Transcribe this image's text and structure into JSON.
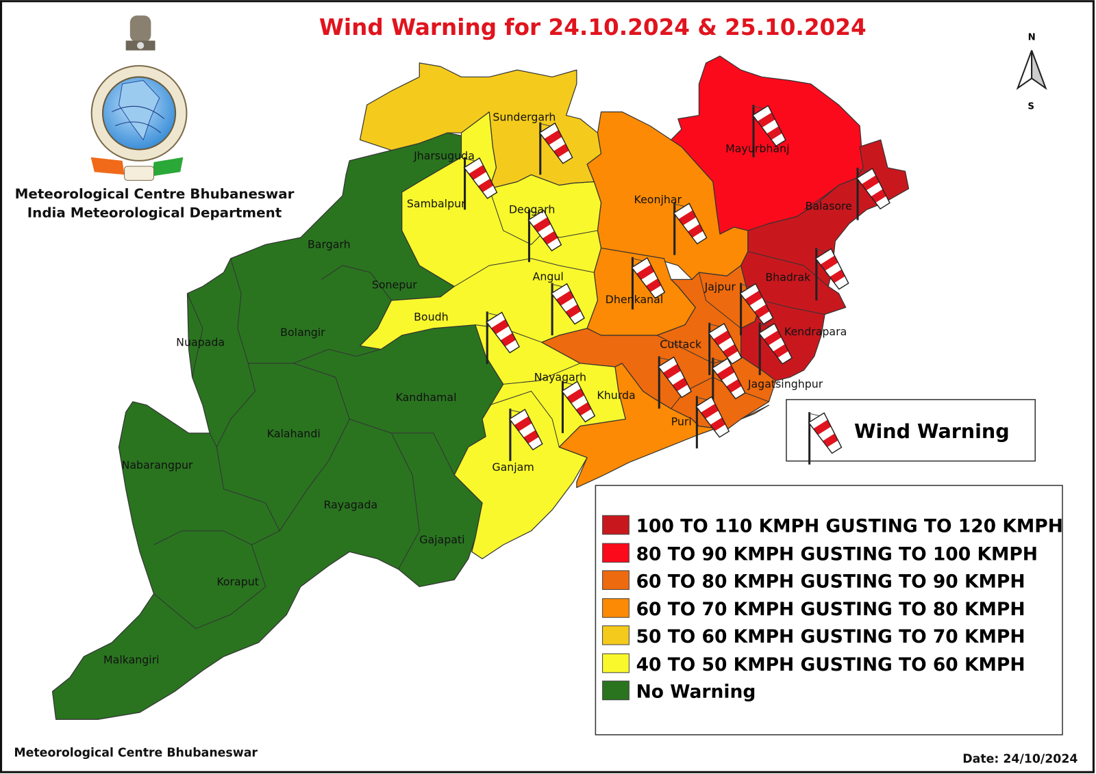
{
  "title": "Wind Warning for 24.10.2024 & 25.10.2024",
  "title_color": "#e0141e",
  "header": {
    "org_line1": "Meteorological Centre Bhubaneswar",
    "org_line2": "India Meteorological Department",
    "logo_text": "INDIA METEOROLOGICAL DEPARTMENT"
  },
  "compass": {
    "north": "N",
    "south": "S"
  },
  "colors": {
    "cat_100_110": "#c8181e",
    "cat_80_90": "#fb0a1c",
    "cat_60_80": "#ee6a0e",
    "cat_60_70": "#fc8a04",
    "cat_50_60": "#f4cb1c",
    "cat_40_50": "#f8f82c",
    "no_warning": "#2a7420"
  },
  "districts": {
    "sundergarh": "Sundergarh",
    "jharsuguda": "Jharsuguda",
    "sambalpur": "Sambalpur",
    "deogarh": "Deogarh",
    "keonjhar": "Keonjhar",
    "mayurbhanj": "Mayurbhanj",
    "balasore": "Balasore",
    "bargarh": "Bargarh",
    "sonepur": "Sonepur",
    "angul": "Angul",
    "bhadrak": "Bhadrak",
    "jajpur": "Jajpur",
    "dhenkanal": "Dhenkanal",
    "boudh": "Boudh",
    "nuapada": "Nuapada",
    "bolangir": "Bolangir",
    "kendrapara": "Kendrapara",
    "cuttack": "Cuttack",
    "nayagarh": "Nayagarh",
    "jagatsinghpur": "Jagatsinghpur",
    "khurda": "Khurda",
    "kandhamal": "Kandhamal",
    "puri": "Puri",
    "kalahandi": "Kalahandi",
    "nabarangpur": "Nabarangpur",
    "ganjam": "Ganjam",
    "rayagada": "Rayagada",
    "gajapati": "Gajapati",
    "koraput": "Koraput",
    "malkangiri": "Malkangiri"
  },
  "wind_warning_legend": {
    "label": "Wind Warning",
    "icon": "windsock-icon"
  },
  "legend": [
    {
      "label": "100 TO 110 KMPH GUSTING TO 120 KMPH",
      "color": "#c8181e"
    },
    {
      "label": "80 TO 90 KMPH GUSTING TO 100 KMPH",
      "color": "#fb0a1c"
    },
    {
      "label": "60 TO 80 KMPH GUSTING TO 90 KMPH",
      "color": "#ee6a0e"
    },
    {
      "label": "60 TO 70 KMPH GUSTING TO 80 KMPH",
      "color": "#fc8a04"
    },
    {
      "label": "50 TO 60 KMPH GUSTING TO 70 KMPH",
      "color": "#f4cb1c"
    },
    {
      "label": "40 TO 50 KMPH GUSTING TO 60 KMPH",
      "color": "#f8f82c"
    },
    {
      "label": "No Warning",
      "color": "#2a7420"
    }
  ],
  "footer": {
    "source": "Meteorological Centre Bhubaneswar",
    "date": "Date: 24/10/2024"
  }
}
